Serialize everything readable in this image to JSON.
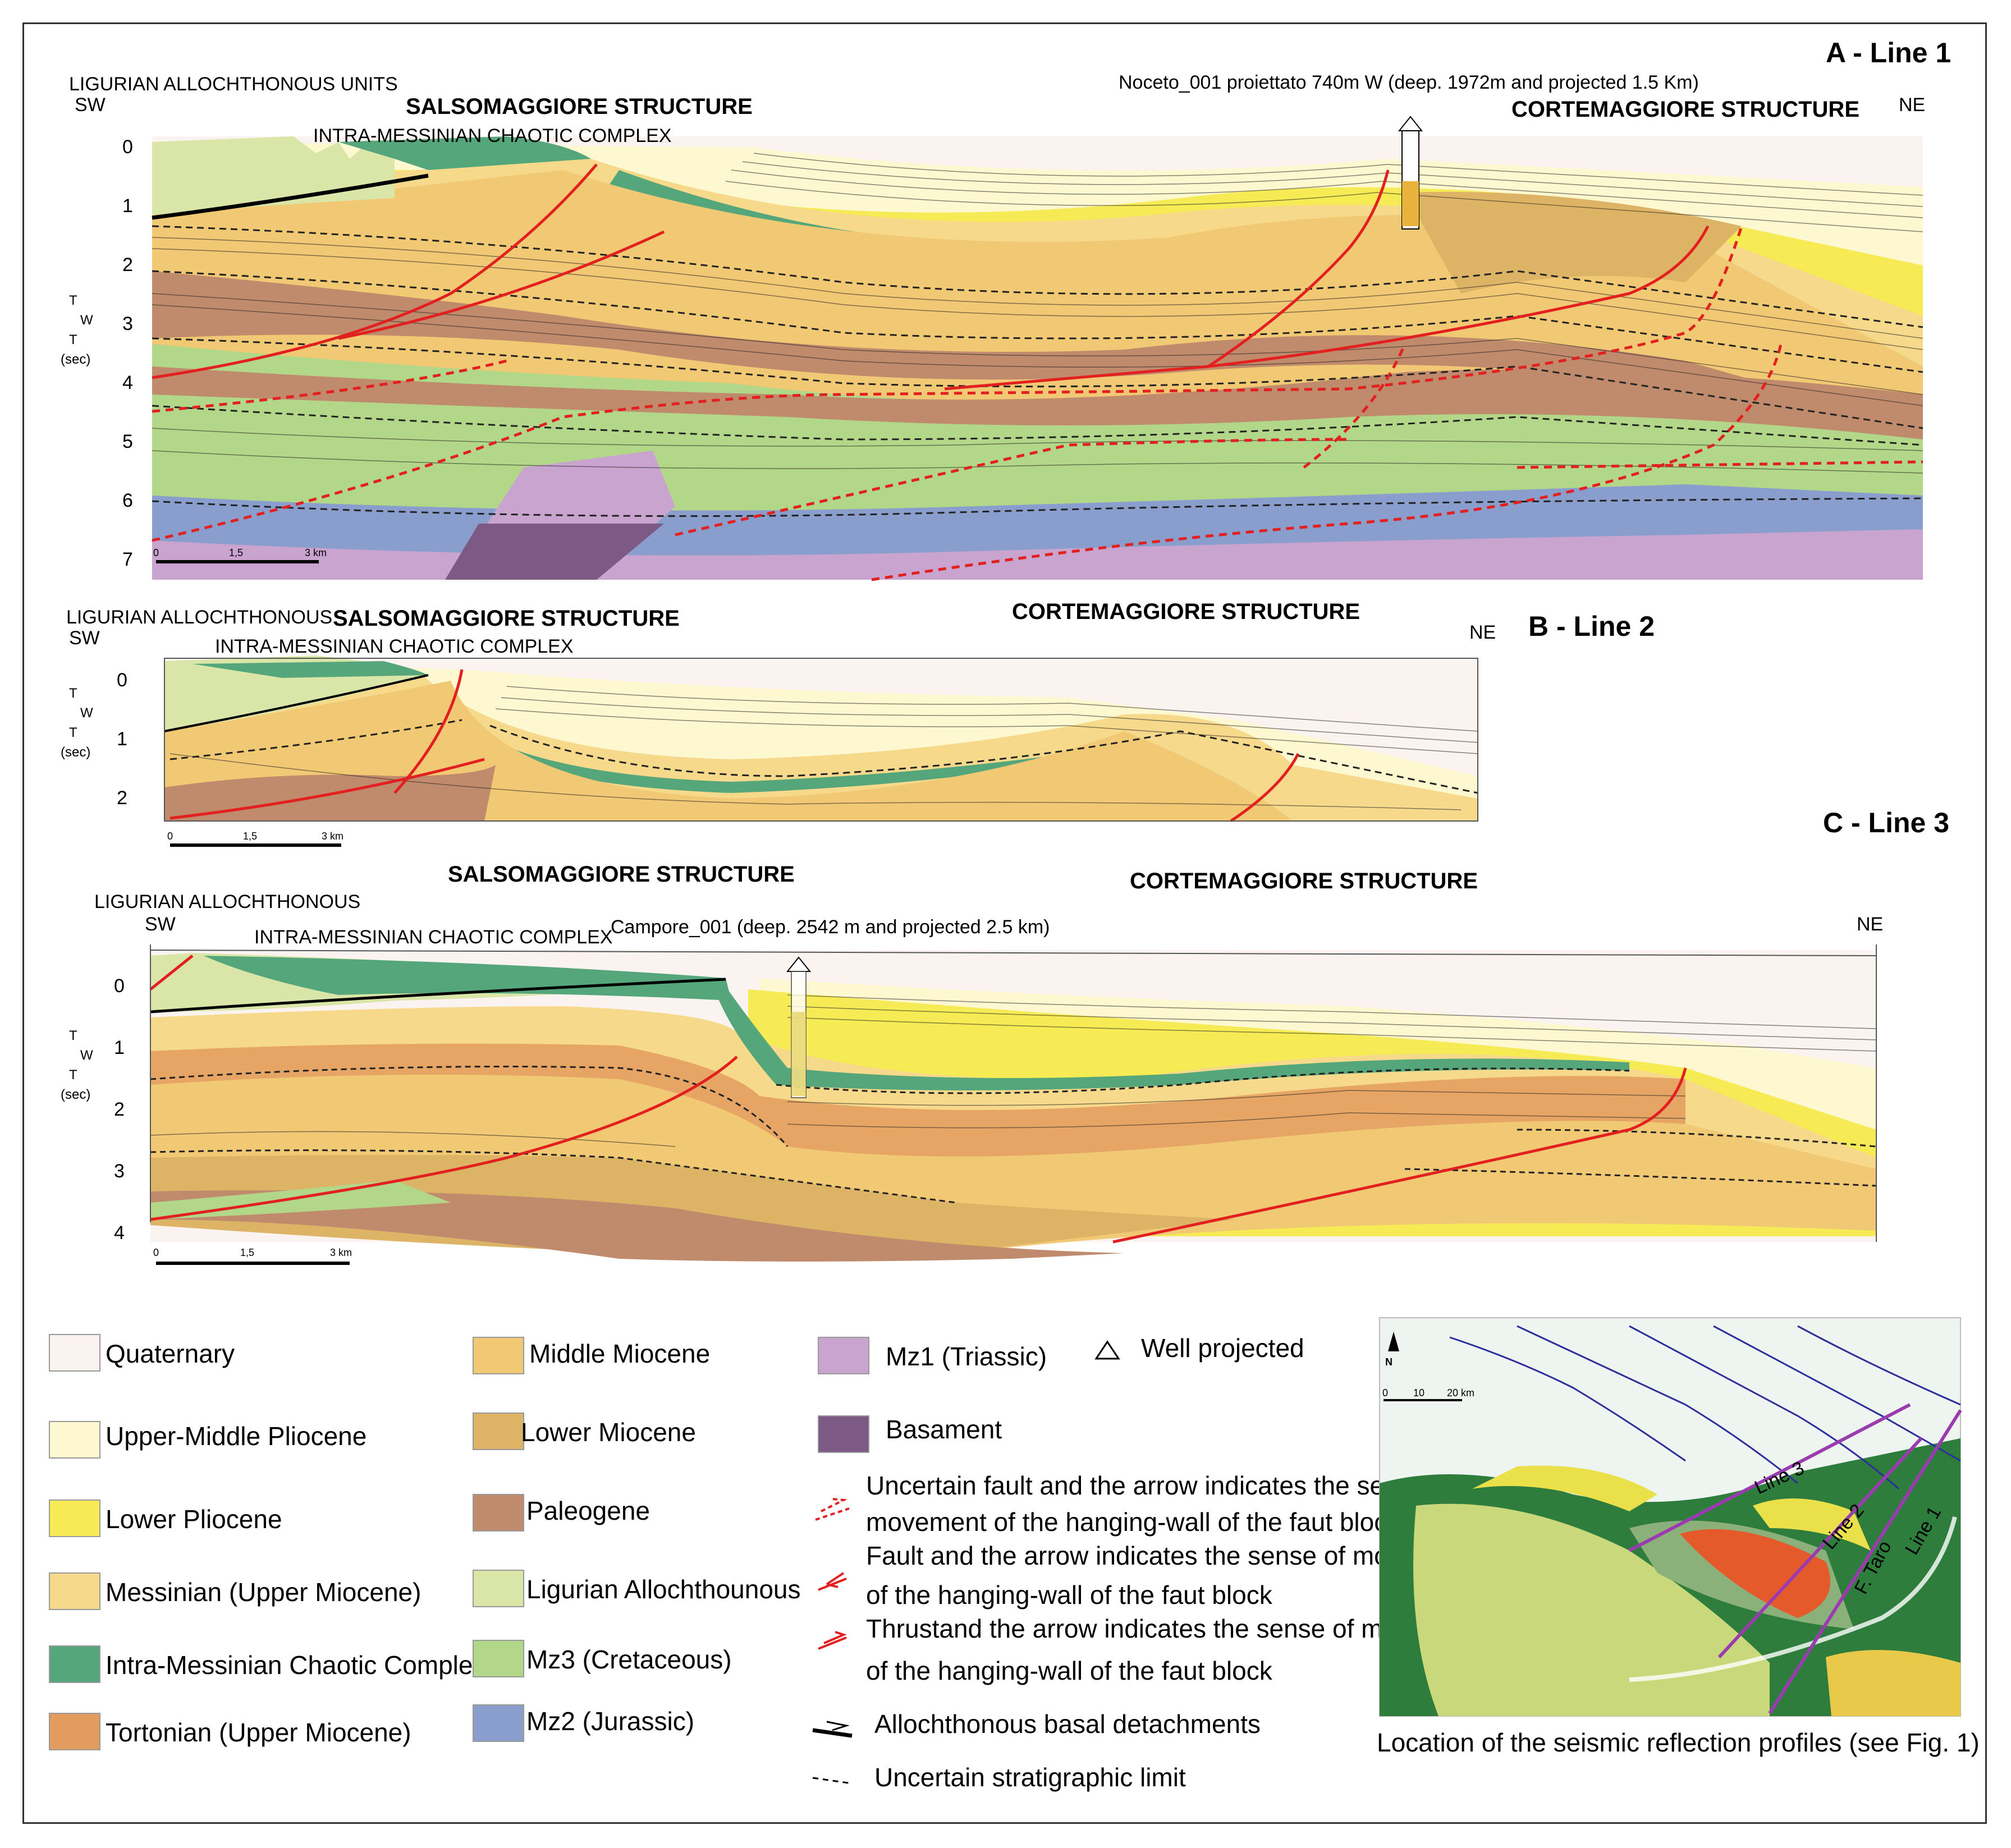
{
  "colors": {
    "quaternary": "#fbf3ef",
    "upper_middle_pliocene": "#fdf8cf",
    "lower_pliocene": "#f6ea55",
    "messinian": "#f6d98a",
    "intra_messinian": "#55a77b",
    "tortonian": "#e39b5e",
    "middle_miocene": "#f1c873",
    "lower_miocene": "#ddb466",
    "paleogene": "#c08a6c",
    "ligurian": "#d9e6a8",
    "mz3": "#b2d788",
    "mz2": "#8a9ecd",
    "mz1": "#c9a4cf",
    "basament": "#7c5a85",
    "fault": "#e32020"
  },
  "panelA": {
    "title": "A - Line 1",
    "ligurian": "LIGURIAN ALLOCHTHONOUS UNITS",
    "sw": "SW",
    "ne": "NE",
    "salso": "SALSOMAGGIORE STRUCTURE",
    "corte": "CORTEMAGGIORE STRUCTURE",
    "intra": "INTRA-MESSINIAN CHAOTIC COMPLEX",
    "well": "Noceto_001 proiettato 740m W (deep. 1972m and projected 1.5 Km)",
    "ticks": [
      "0",
      "1",
      "2",
      "3",
      "4",
      "5",
      "6",
      "7"
    ],
    "twt": [
      "T",
      "W",
      "T",
      "(sec)"
    ],
    "scale": [
      "0",
      "1,5",
      "3 km"
    ]
  },
  "panelB": {
    "title": "B - Line 2",
    "ligurian": "LIGURIAN ALLOCHTHONOUS",
    "sw": "SW",
    "ne": "NE",
    "salso": "SALSOMAGGIORE STRUCTURE",
    "corte": "CORTEMAGGIORE STRUCTURE",
    "intra": "INTRA-MESSINIAN CHAOTIC COMPLEX",
    "ticks": [
      "0",
      "1",
      "2"
    ],
    "twt": [
      "T",
      "W",
      "T",
      "(sec)"
    ],
    "scale": [
      "0",
      "1,5",
      "3 km"
    ]
  },
  "panelC": {
    "title": "C - Line 3",
    "ligurian": "LIGURIAN ALLOCHTHONOUS",
    "sw": "SW",
    "ne": "NE",
    "salso": "SALSOMAGGIORE STRUCTURE",
    "corte": "CORTEMAGGIORE STRUCTURE",
    "intra": "INTRA-MESSINIAN CHAOTIC COMPLEX",
    "well": "Campore_001 (deep. 2542 m and projected 2.5 km)",
    "ticks": [
      "0",
      "1",
      "2",
      "3",
      "4"
    ],
    "twt": [
      "T",
      "W",
      "T",
      "(sec)"
    ],
    "scale": [
      "0",
      "1,5",
      "3 km"
    ]
  },
  "legend": {
    "quaternary": "Quaternary",
    "upper_middle_pliocene": "Upper-Middle Pliocene",
    "lower_pliocene": "Lower Pliocene",
    "messinian": "Messinian (Upper Miocene)",
    "intra_messinian": "Intra-Messinian Chaotic Complex",
    "tortonian": "Tortonian (Upper Miocene)",
    "middle_miocene": "Middle Miocene",
    "lower_miocene": "Lower Miocene",
    "paleogene": "Paleogene",
    "ligurian": "Ligurian Allochthounous",
    "mz3": "Mz3 (Cretaceous)",
    "mz2": "Mz2 (Jurassic)",
    "mz1": "Mz1 (Triassic)",
    "basament": "Basament",
    "well": "Well projected",
    "uncertain_fault_1": "Uncertain fault and the arrow indicates the sense of",
    "uncertain_fault_2": "movement of the hanging-wall of the faut block",
    "fault_1": "Fault and the arrow indicates the sense of movement",
    "fault_2": "of the hanging-wall of the faut block",
    "thrust_1": "Thrustand the arrow indicates the sense of movement",
    "thrust_2": "of the hanging-wall of the faut block",
    "detach": "Allochthonous basal detachments",
    "strat": "Uncertain stratigraphic limit"
  },
  "map": {
    "north": "N",
    "scale": [
      "0",
      "10",
      "20 km"
    ],
    "line3": "Line 3",
    "line2": "Line 2",
    "ftaro": "F. Taro",
    "line1": "Line 1",
    "caption": "Location of the seismic reflection profiles (see Fig. 1)"
  }
}
